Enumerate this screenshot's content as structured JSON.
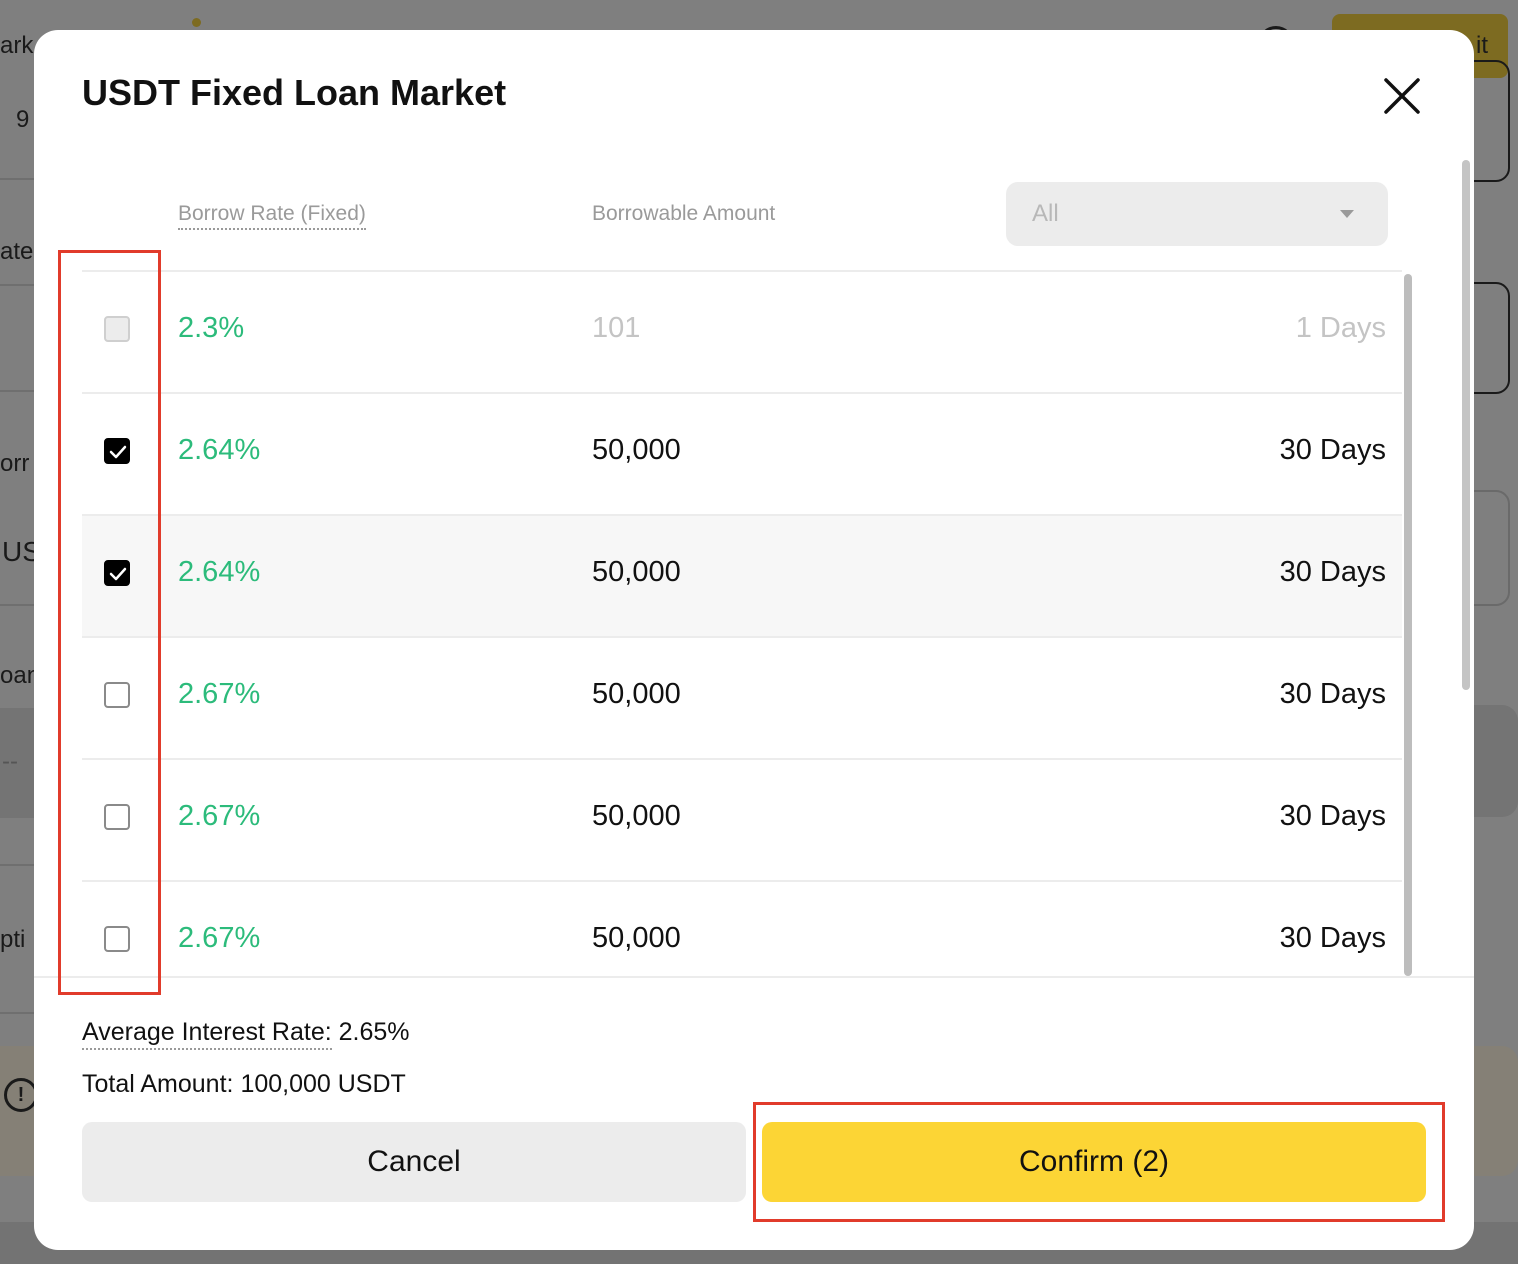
{
  "background": {
    "fragments": [
      "ark",
      "9",
      "ate",
      "orr",
      "US",
      "oan",
      "--",
      "pti",
      "it"
    ]
  },
  "modal": {
    "title": "USDT Fixed Loan Market",
    "close_icon": "close-icon"
  },
  "table": {
    "headers": {
      "rate": "Borrow Rate (Fixed)",
      "amount": "Borrowable Amount"
    },
    "filter": {
      "value": "All"
    },
    "rows": [
      {
        "rate": "2.3%",
        "amount": "101",
        "term": "1 Days",
        "state": "disabled"
      },
      {
        "rate": "2.64%",
        "amount": "50,000",
        "term": "30 Days",
        "state": "checked"
      },
      {
        "rate": "2.64%",
        "amount": "50,000",
        "term": "30 Days",
        "state": "checked"
      },
      {
        "rate": "2.67%",
        "amount": "50,000",
        "term": "30 Days",
        "state": "unchecked"
      },
      {
        "rate": "2.67%",
        "amount": "50,000",
        "term": "30 Days",
        "state": "unchecked"
      },
      {
        "rate": "2.67%",
        "amount": "50,000",
        "term": "30 Days",
        "state": "unchecked"
      }
    ]
  },
  "summary": {
    "avg_label": "Average Interest Rate:",
    "avg_value": "2.65%",
    "total_label": "Total Amount:",
    "total_value": "100,000 USDT"
  },
  "buttons": {
    "cancel": "Cancel",
    "confirm": "Confirm (2)"
  },
  "colors": {
    "rate_green": "#2cbb7b",
    "confirm_yellow": "#fcd535",
    "annotation_red": "#e13b2b"
  }
}
